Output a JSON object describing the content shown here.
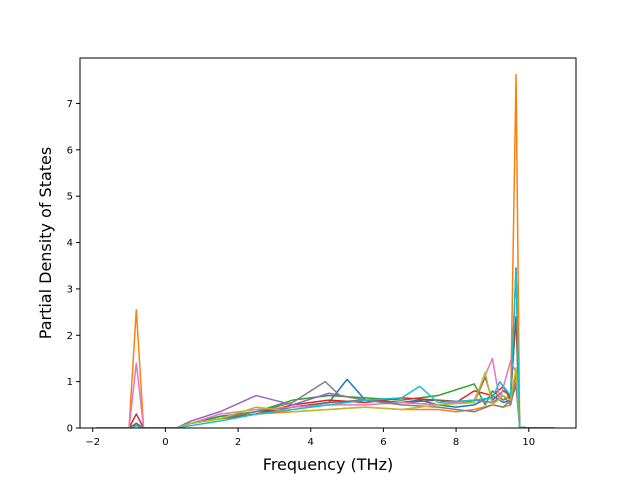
{
  "chart_data": {
    "type": "line",
    "title": "",
    "xlabel": "Frequency (THz)",
    "ylabel": "Partial Density of States",
    "xlim": [
      -2.35,
      11.3
    ],
    "ylim": [
      0,
      7.98
    ],
    "xticks": [
      -2,
      0,
      2,
      4,
      6,
      8,
      10
    ],
    "yticks": [
      0,
      1,
      2,
      3,
      4,
      5,
      6,
      7
    ],
    "grid": false,
    "legend": "none",
    "colors": [
      "#1f77b4",
      "#ff7f0e",
      "#2ca02c",
      "#d62728",
      "#9467bd",
      "#8c564b",
      "#e377c2",
      "#7f7f7f",
      "#bcbd22",
      "#17becf"
    ],
    "series": [
      {
        "x": [
          -1.9,
          -1.0,
          -0.8,
          -0.6,
          0.3,
          0.7,
          1.5,
          2.5,
          3.5,
          4.5,
          5.0,
          5.5,
          6.5,
          7.0,
          7.5,
          8.0,
          8.5,
          9.0,
          9.3,
          9.5,
          9.65,
          9.75,
          10.0,
          10.7
        ],
        "y": [
          0,
          0,
          0.05,
          0,
          0,
          0.1,
          0.25,
          0.35,
          0.45,
          0.55,
          1.05,
          0.6,
          0.55,
          0.6,
          0.5,
          0.45,
          0.5,
          0.7,
          0.55,
          0.6,
          3.45,
          0.02,
          0,
          0
        ]
      },
      {
        "x": [
          -1.9,
          -1.0,
          -0.8,
          -0.6,
          0.3,
          0.7,
          1.5,
          2.5,
          3.5,
          4.5,
          5.5,
          6.5,
          7.5,
          8.0,
          8.5,
          9.0,
          9.3,
          9.5,
          9.65,
          9.75,
          10.0,
          10.7
        ],
        "y": [
          0,
          0,
          2.55,
          0,
          0,
          0.1,
          0.2,
          0.3,
          0.35,
          0.4,
          0.45,
          0.4,
          0.4,
          0.35,
          0.4,
          0.5,
          0.45,
          0.5,
          7.62,
          0.02,
          0,
          0
        ]
      },
      {
        "x": [
          -1.9,
          -1.0,
          -0.8,
          -0.6,
          0.3,
          0.7,
          1.5,
          2.5,
          3.5,
          4.5,
          5.5,
          6.5,
          7.5,
          8.5,
          8.8,
          9.0,
          9.3,
          9.5,
          9.65,
          9.75,
          10.0,
          10.7
        ],
        "y": [
          0,
          0,
          0.1,
          0,
          0,
          0.1,
          0.25,
          0.35,
          0.6,
          0.7,
          0.65,
          0.6,
          0.7,
          0.95,
          0.5,
          0.8,
          0.6,
          0.7,
          2.4,
          0.02,
          0,
          0
        ]
      },
      {
        "x": [
          -1.9,
          -1.0,
          -0.8,
          -0.6,
          0.3,
          0.7,
          1.5,
          2.5,
          3.5,
          4.5,
          5.5,
          6.5,
          7.5,
          8.0,
          8.5,
          9.0,
          9.3,
          9.5,
          9.65,
          9.75,
          10.0,
          10.7
        ],
        "y": [
          0,
          0,
          0.3,
          0,
          0,
          0.1,
          0.2,
          0.3,
          0.5,
          0.6,
          0.55,
          0.65,
          0.6,
          0.55,
          0.8,
          0.7,
          0.9,
          0.6,
          1.2,
          0.02,
          0,
          0
        ]
      },
      {
        "x": [
          -1.9,
          -1.0,
          -0.8,
          -0.6,
          0.3,
          0.7,
          1.5,
          2.5,
          3.5,
          4.5,
          5.5,
          6.5,
          7.5,
          8.5,
          9.0,
          9.3,
          9.5,
          9.65,
          9.75,
          10.0,
          10.7
        ],
        "y": [
          0,
          0,
          0.05,
          0,
          0,
          0.15,
          0.35,
          0.7,
          0.5,
          0.75,
          0.6,
          0.55,
          0.5,
          0.6,
          0.55,
          0.7,
          0.5,
          1.0,
          0.02,
          0,
          0
        ]
      },
      {
        "x": [
          -1.9,
          -1.0,
          -0.8,
          -0.6,
          0.3,
          0.7,
          1.5,
          2.5,
          3.5,
          4.5,
          5.5,
          6.5,
          7.5,
          8.5,
          8.8,
          9.0,
          9.3,
          9.5,
          9.65,
          9.75,
          10.0,
          10.7
        ],
        "y": [
          0,
          0,
          0.1,
          0,
          0,
          0.1,
          0.2,
          0.3,
          0.45,
          0.55,
          0.6,
          0.55,
          0.6,
          0.55,
          1.1,
          0.6,
          0.8,
          0.7,
          2.4,
          0.02,
          0,
          0
        ]
      },
      {
        "x": [
          -1.9,
          -1.0,
          -0.8,
          -0.6,
          0.3,
          0.7,
          1.5,
          2.5,
          3.5,
          4.5,
          5.5,
          6.5,
          7.5,
          8.5,
          9.0,
          9.2,
          9.5,
          9.65,
          9.75,
          10.0,
          10.7
        ],
        "y": [
          0,
          0,
          1.4,
          0,
          0,
          0.1,
          0.3,
          0.4,
          0.45,
          0.5,
          0.5,
          0.55,
          0.5,
          0.6,
          1.5,
          0.6,
          1.45,
          1.2,
          0.02,
          0,
          0
        ]
      },
      {
        "x": [
          -1.9,
          -1.0,
          -0.8,
          -0.6,
          0.3,
          0.7,
          1.5,
          2.5,
          3.5,
          4.4,
          4.8,
          5.5,
          6.5,
          7.5,
          8.0,
          8.5,
          9.0,
          9.3,
          9.5,
          9.65,
          9.75,
          10.0,
          10.7
        ],
        "y": [
          0,
          0,
          0.05,
          0,
          0,
          0.1,
          0.2,
          0.35,
          0.55,
          1.0,
          0.7,
          0.6,
          0.5,
          0.45,
          0.4,
          0.35,
          0.5,
          0.45,
          0.6,
          0.9,
          0.02,
          0,
          0
        ]
      },
      {
        "x": [
          -1.9,
          -1.0,
          -0.8,
          -0.6,
          0.3,
          0.7,
          1.5,
          2.5,
          3.5,
          4.5,
          5.5,
          6.5,
          7.5,
          8.5,
          8.8,
          9.0,
          9.3,
          9.5,
          9.65,
          9.75,
          10.0,
          10.7
        ],
        "y": [
          0,
          0,
          0.05,
          0,
          0,
          0.1,
          0.2,
          0.45,
          0.35,
          0.4,
          0.45,
          0.4,
          0.5,
          0.55,
          1.2,
          0.5,
          0.7,
          0.6,
          1.3,
          0.02,
          0,
          0
        ]
      },
      {
        "x": [
          -1.9,
          -1.0,
          -0.8,
          -0.6,
          0.3,
          0.7,
          1.5,
          2.5,
          3.5,
          4.5,
          5.5,
          6.5,
          7.0,
          7.5,
          8.5,
          9.0,
          9.2,
          9.5,
          9.65,
          9.75,
          10.0,
          10.7
        ],
        "y": [
          0,
          0,
          0.05,
          0,
          0,
          0.05,
          0.15,
          0.3,
          0.4,
          0.5,
          0.6,
          0.65,
          0.9,
          0.55,
          0.6,
          0.65,
          1.0,
          0.7,
          3.4,
          0.02,
          0,
          0
        ]
      }
    ]
  }
}
